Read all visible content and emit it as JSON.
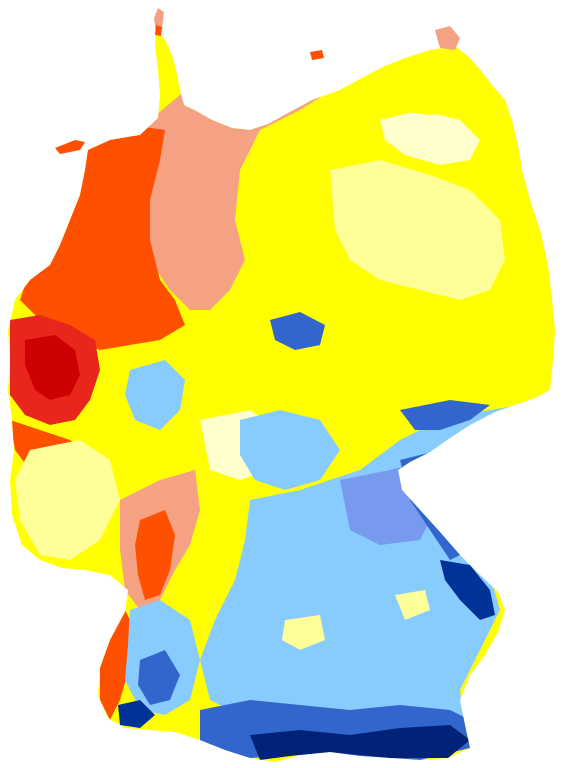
{
  "map": {
    "region": "Germany",
    "palette": {
      "dark_red": "#cc0000",
      "red": "#e8261b",
      "orange_red": "#ff5000",
      "salmon": "#f5a284",
      "yellow": "#ffff00",
      "light_yellow": "#ffff99",
      "cream": "#ffffcc",
      "sky_blue": "#88ccff",
      "light_blue": "#66bbff",
      "periwinkle": "#7799ee",
      "mid_blue": "#3366cc",
      "dark_blue": "#003399",
      "navy": "#002277",
      "background": "#ffffff"
    }
  }
}
